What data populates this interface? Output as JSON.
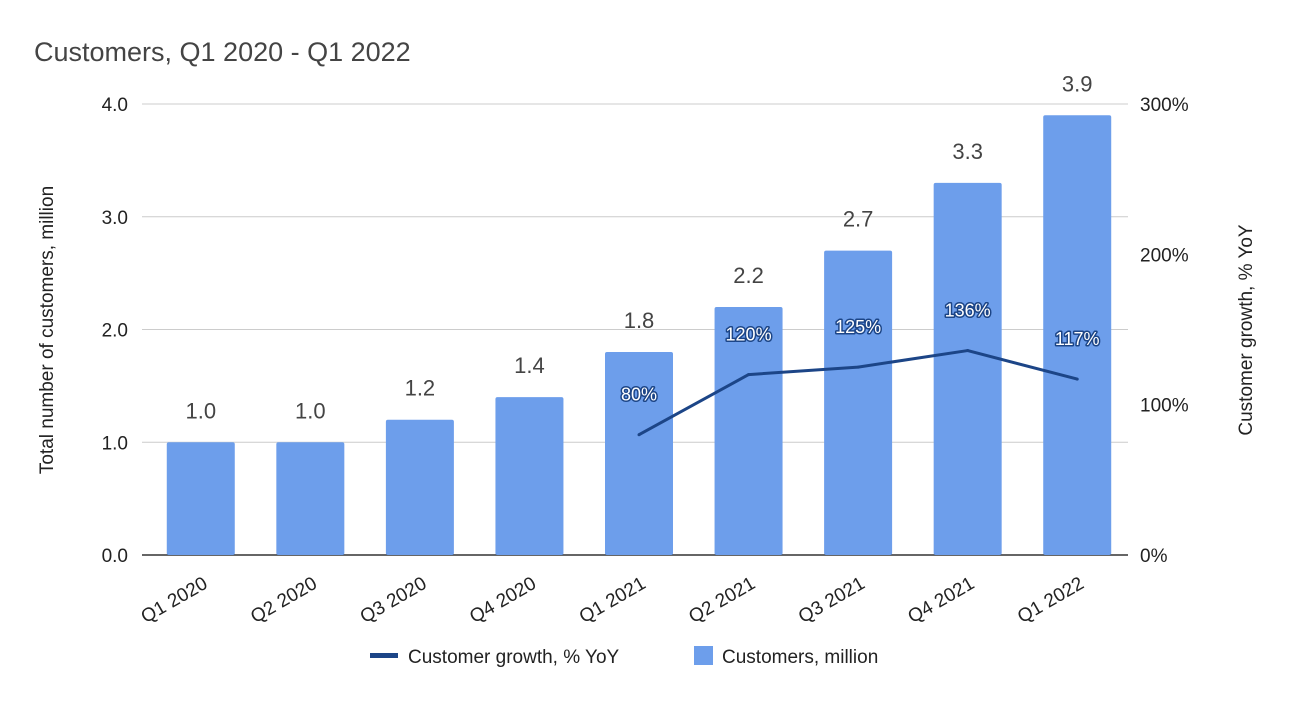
{
  "chart_data": {
    "type": "bar",
    "title": "Customers, Q1 2020 - Q1 2022",
    "categories": [
      "Q1 2020",
      "Q2 2020",
      "Q3 2020",
      "Q4 2020",
      "Q1 2021",
      "Q2 2021",
      "Q3 2021",
      "Q4 2021",
      "Q1 2022"
    ],
    "series": [
      {
        "name": "Customers, million",
        "type": "bar",
        "axis": "left",
        "color": "#6d9eeb",
        "values": [
          1.0,
          1.0,
          1.2,
          1.4,
          1.8,
          2.2,
          2.7,
          3.3,
          3.9
        ],
        "labels": [
          "1.0",
          "1.0",
          "1.2",
          "1.4",
          "1.8",
          "2.2",
          "2.7",
          "3.3",
          "3.9"
        ]
      },
      {
        "name": "Customer growth, % YoY",
        "type": "line",
        "axis": "right",
        "color": "#1c4587",
        "values": [
          null,
          null,
          null,
          null,
          80,
          120,
          125,
          136,
          117
        ],
        "labels": [
          null,
          null,
          null,
          null,
          "80%",
          "120%",
          "125%",
          "136%",
          "117%"
        ]
      }
    ],
    "ylabel": "Total number of customers, million",
    "ylabel_right": "Customer growth, % YoY",
    "ylim": [
      0,
      4
    ],
    "ylim_right": [
      0,
      300
    ],
    "yticks": [
      "0.0",
      "1.0",
      "2.0",
      "3.0",
      "4.0"
    ],
    "yticks_right": [
      "0%",
      "100%",
      "200%",
      "300%"
    ],
    "grid": true,
    "legend": {
      "position": "bottom",
      "entries": [
        "Customer growth, % YoY",
        "Customers, million"
      ]
    }
  }
}
